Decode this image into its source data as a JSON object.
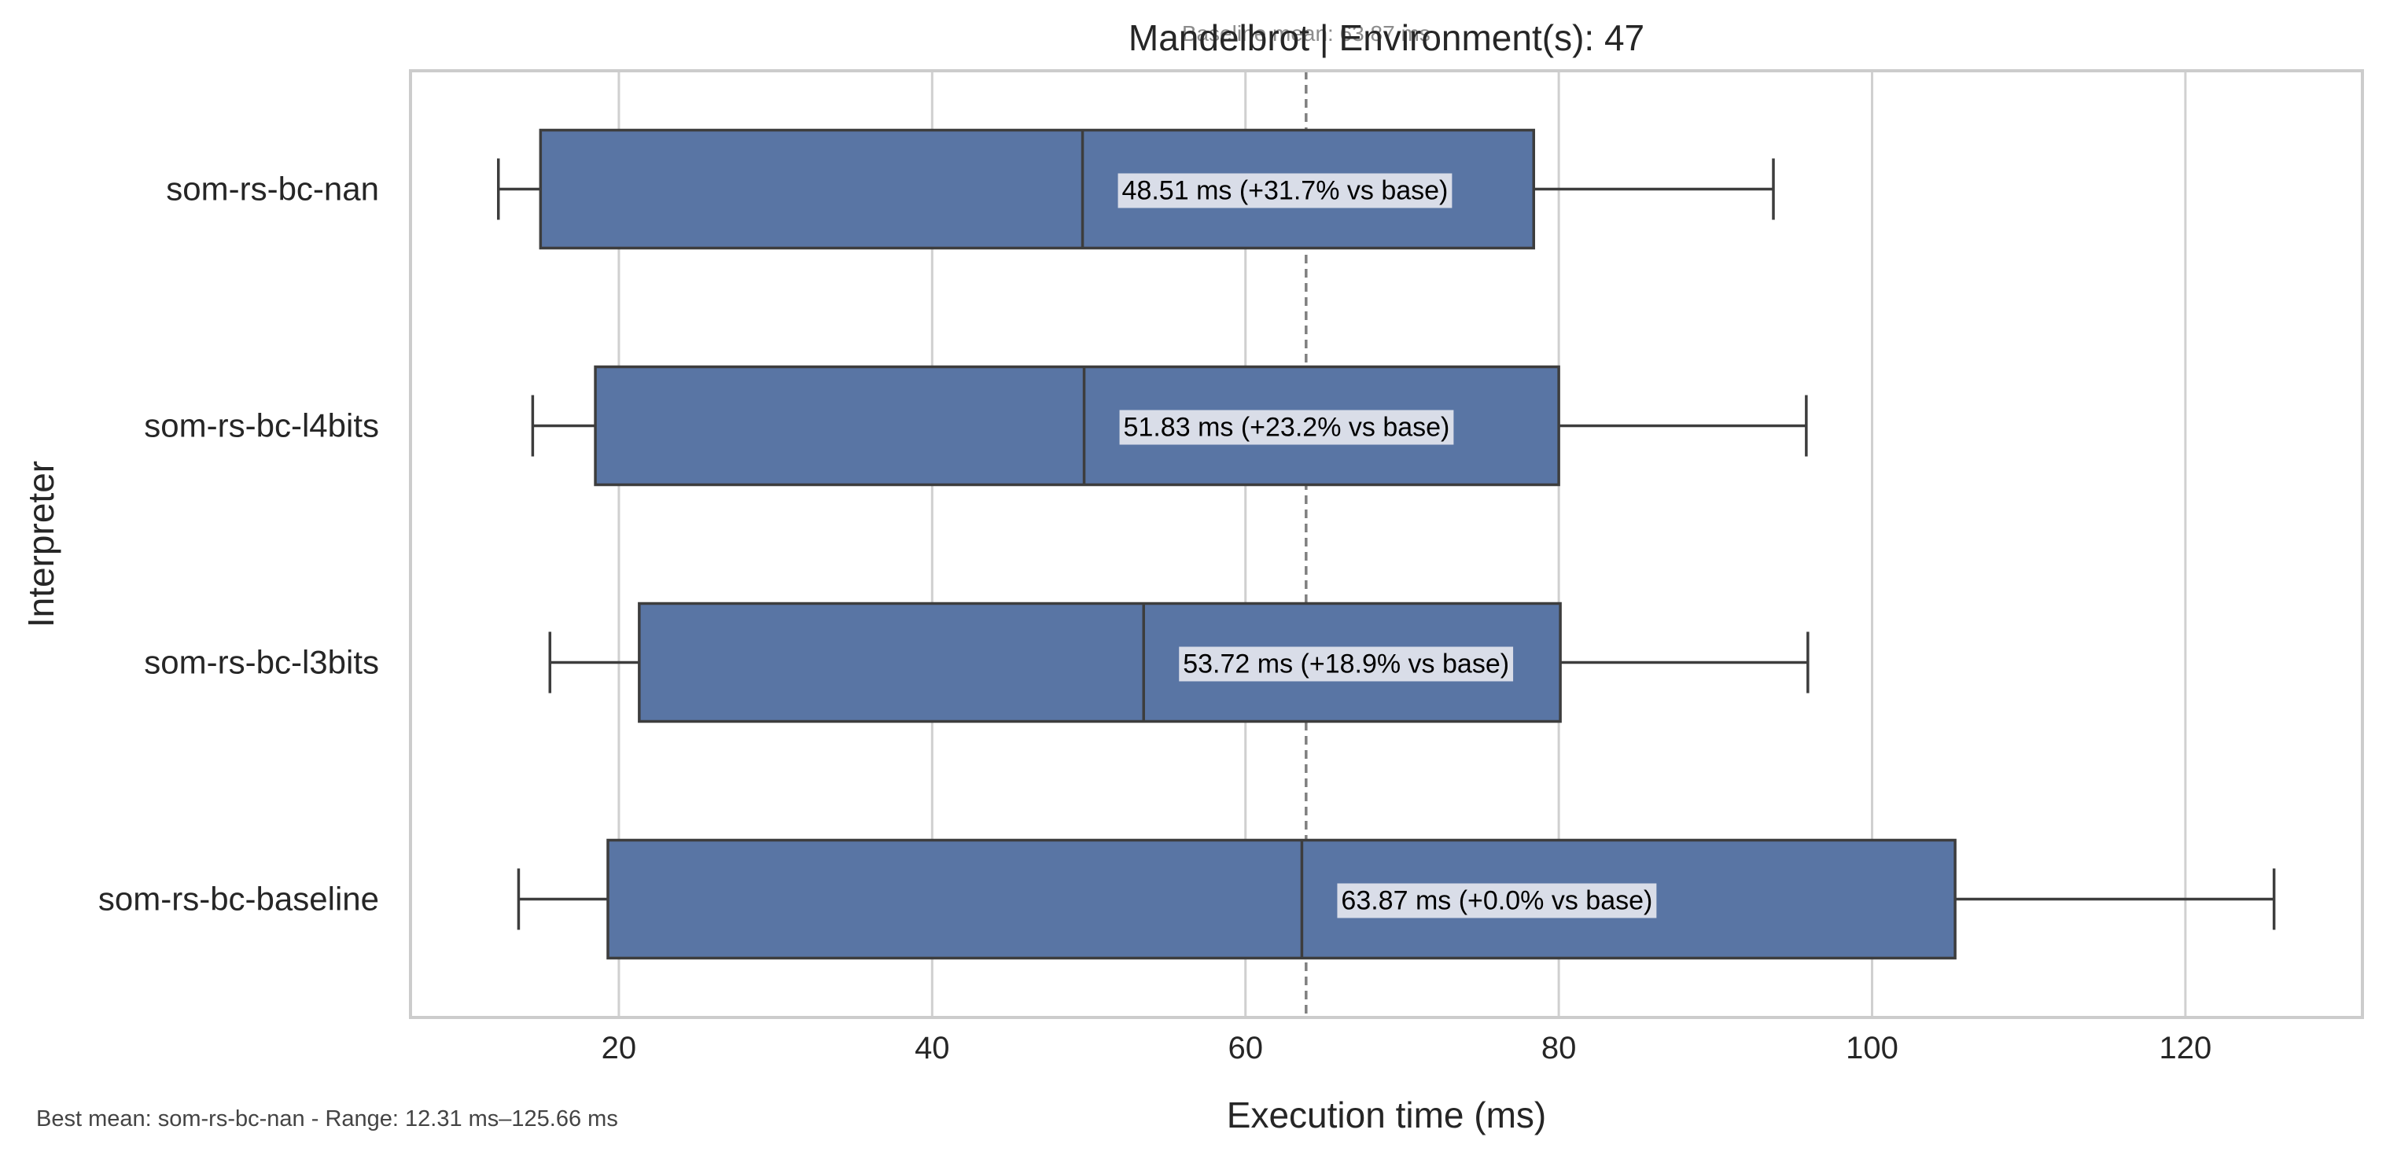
{
  "chart_data": {
    "type": "boxplot",
    "orientation": "horizontal",
    "title": "Mandelbrot | Environment(s): 47",
    "baseline_annotation": "Baseline mean: 63.87 ms",
    "xlabel": "Execution time (ms)",
    "ylabel": "Interpreter",
    "xlim": [
      6.7,
      131.3
    ],
    "xticks": [
      20,
      40,
      60,
      80,
      100,
      120
    ],
    "grid": "vertical",
    "baseline_mean": 63.87,
    "categories": [
      "som-rs-bc-nan",
      "som-rs-bc-l4bits",
      "som-rs-bc-l3bits",
      "som-rs-bc-baseline"
    ],
    "boxes": [
      {
        "name": "som-rs-bc-nan",
        "whisker_low": 12.31,
        "q1": 15.0,
        "median": 49.6,
        "q3": 78.4,
        "whisker_high": 93.7,
        "label": "48.51 ms  (+31.7% vs base)"
      },
      {
        "name": "som-rs-bc-l4bits",
        "whisker_low": 14.5,
        "q1": 18.5,
        "median": 49.7,
        "q3": 80.0,
        "whisker_high": 95.8,
        "label": "51.83 ms  (+23.2% vs base)"
      },
      {
        "name": "som-rs-bc-l3bits",
        "whisker_low": 15.6,
        "q1": 21.3,
        "median": 53.5,
        "q3": 80.1,
        "whisker_high": 95.9,
        "label": "53.72 ms  (+18.9% vs base)"
      },
      {
        "name": "som-rs-bc-baseline",
        "whisker_low": 13.6,
        "q1": 19.3,
        "median": 63.6,
        "q3": 105.3,
        "whisker_high": 125.66,
        "label": "63.87 ms  (+0.0% vs base)"
      }
    ],
    "colors": {
      "box": "#5975a4",
      "box_edge": "#3d3d3d",
      "grid": "#d0d0d0",
      "frame": "#cccccc",
      "baseline_line": "#808080",
      "label_bg": "#d9dde8"
    }
  },
  "footnote": "Best mean: som-rs-bc-nan - Range: 12.31 ms–125.66 ms"
}
